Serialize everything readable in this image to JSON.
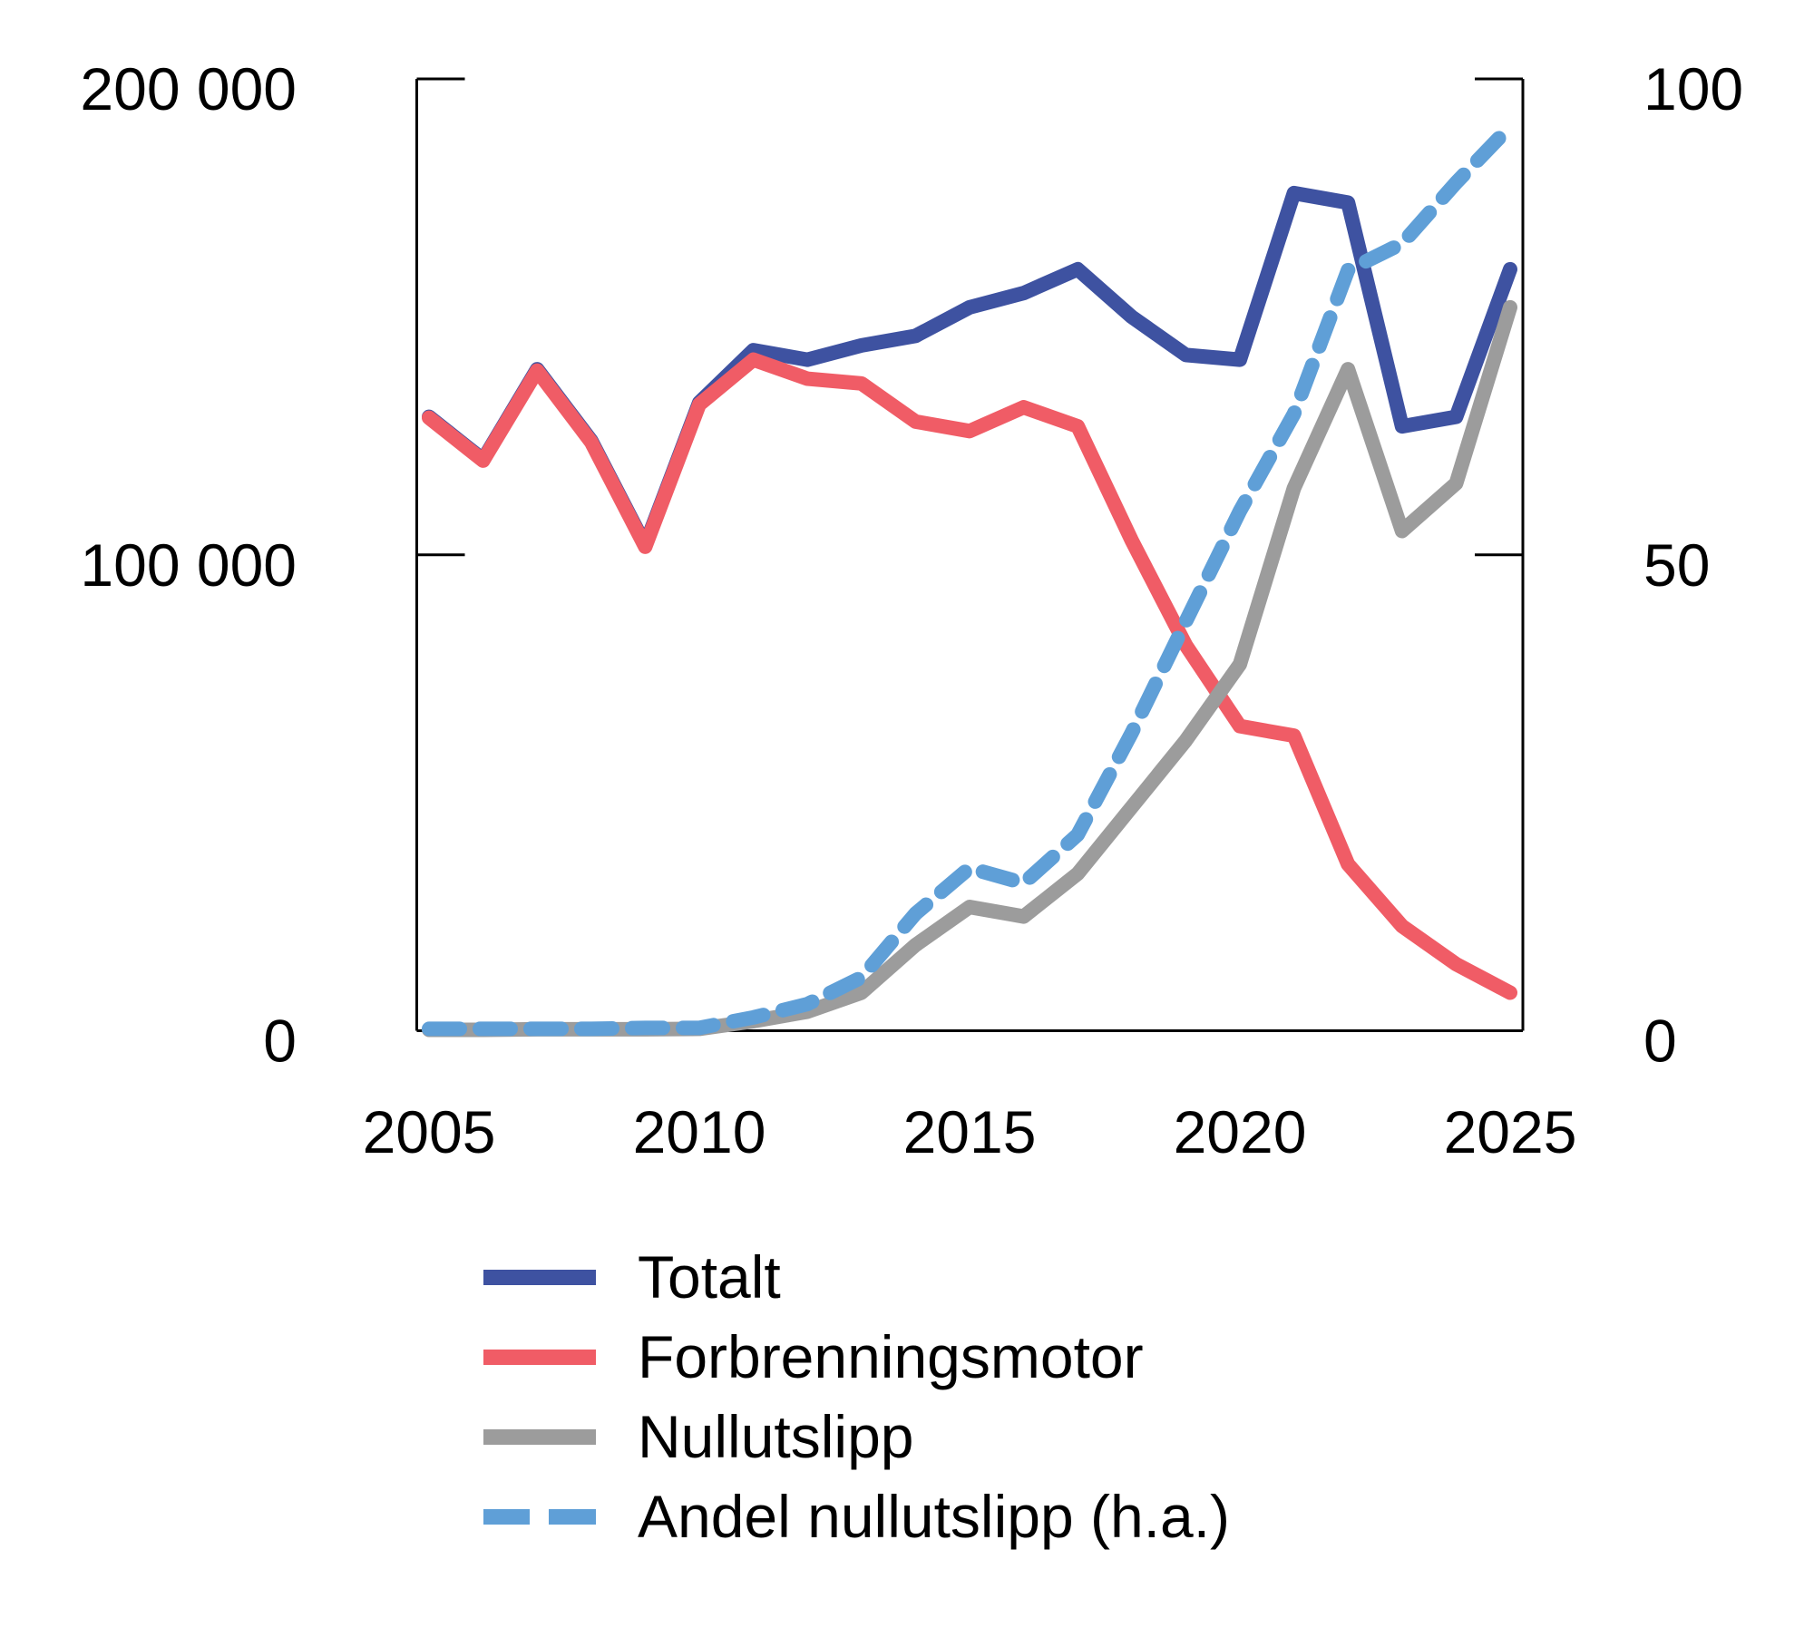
{
  "figure": {
    "background": "#ffffff",
    "axis_color": "#000000",
    "text_color": "#000000"
  },
  "chart_data": {
    "type": "line",
    "x": [
      2005,
      2006,
      2007,
      2008,
      2009,
      2010,
      2011,
      2012,
      2013,
      2014,
      2015,
      2016,
      2017,
      2018,
      2019,
      2020,
      2021,
      2022,
      2023,
      2024,
      2025
    ],
    "series": [
      {
        "name": "Totalt",
        "color": "#3E52A1",
        "style": "solid",
        "axis": "left",
        "values": [
          129000,
          120000,
          139000,
          124000,
          102000,
          132000,
          143000,
          141000,
          144000,
          146000,
          152000,
          155000,
          160000,
          150000,
          142000,
          141000,
          176000,
          174000,
          127000,
          129000,
          160000
        ]
      },
      {
        "name": "Forbrenningsmotor",
        "color": "#F05C66",
        "style": "solid",
        "axis": "left",
        "values": [
          128800,
          119800,
          138700,
          123700,
          101700,
          131600,
          141000,
          137000,
          136000,
          128000,
          126000,
          131000,
          127000,
          103000,
          81000,
          64000,
          62000,
          35000,
          22000,
          14000,
          8000
        ]
      },
      {
        "name": "Nullutslipp",
        "color": "#9C9C9C",
        "style": "solid",
        "axis": "left",
        "values": [
          200,
          200,
          300,
          300,
          300,
          400,
          2000,
          4000,
          8000,
          18000,
          26000,
          24000,
          33000,
          47000,
          61000,
          77000,
          114000,
          139000,
          105000,
          115000,
          152000
        ]
      },
      {
        "name": "Andel nullutslipp (h.a.)",
        "color": "#5F9FD7",
        "style": "dashed",
        "axis": "right",
        "values": [
          0.2,
          0.2,
          0.2,
          0.2,
          0.3,
          0.3,
          1.4,
          2.8,
          5.6,
          12.3,
          17.1,
          15.5,
          20.6,
          31.3,
          43.0,
          54.6,
          64.8,
          79.9,
          82.7,
          89.1,
          95.0
        ]
      }
    ],
    "left_axis": {
      "min": 0,
      "max": 200000,
      "ticks": [
        {
          "value": 0,
          "label": "0"
        },
        {
          "value": 100000,
          "label": "100 000"
        },
        {
          "value": 200000,
          "label": "200 000"
        }
      ]
    },
    "right_axis": {
      "min": 0,
      "max": 100,
      "ticks": [
        {
          "value": 0,
          "label": "0"
        },
        {
          "value": 50,
          "label": "50"
        },
        {
          "value": 100,
          "label": "100"
        }
      ]
    },
    "x_axis": {
      "min": 2005,
      "max": 2025,
      "ticks": [
        {
          "value": 2005,
          "label": "2005"
        },
        {
          "value": 2010,
          "label": "2010"
        },
        {
          "value": 2015,
          "label": "2015"
        },
        {
          "value": 2020,
          "label": "2020"
        },
        {
          "value": 2025,
          "label": "2025"
        }
      ]
    },
    "grid": false,
    "legend_position": "bottom-left"
  }
}
